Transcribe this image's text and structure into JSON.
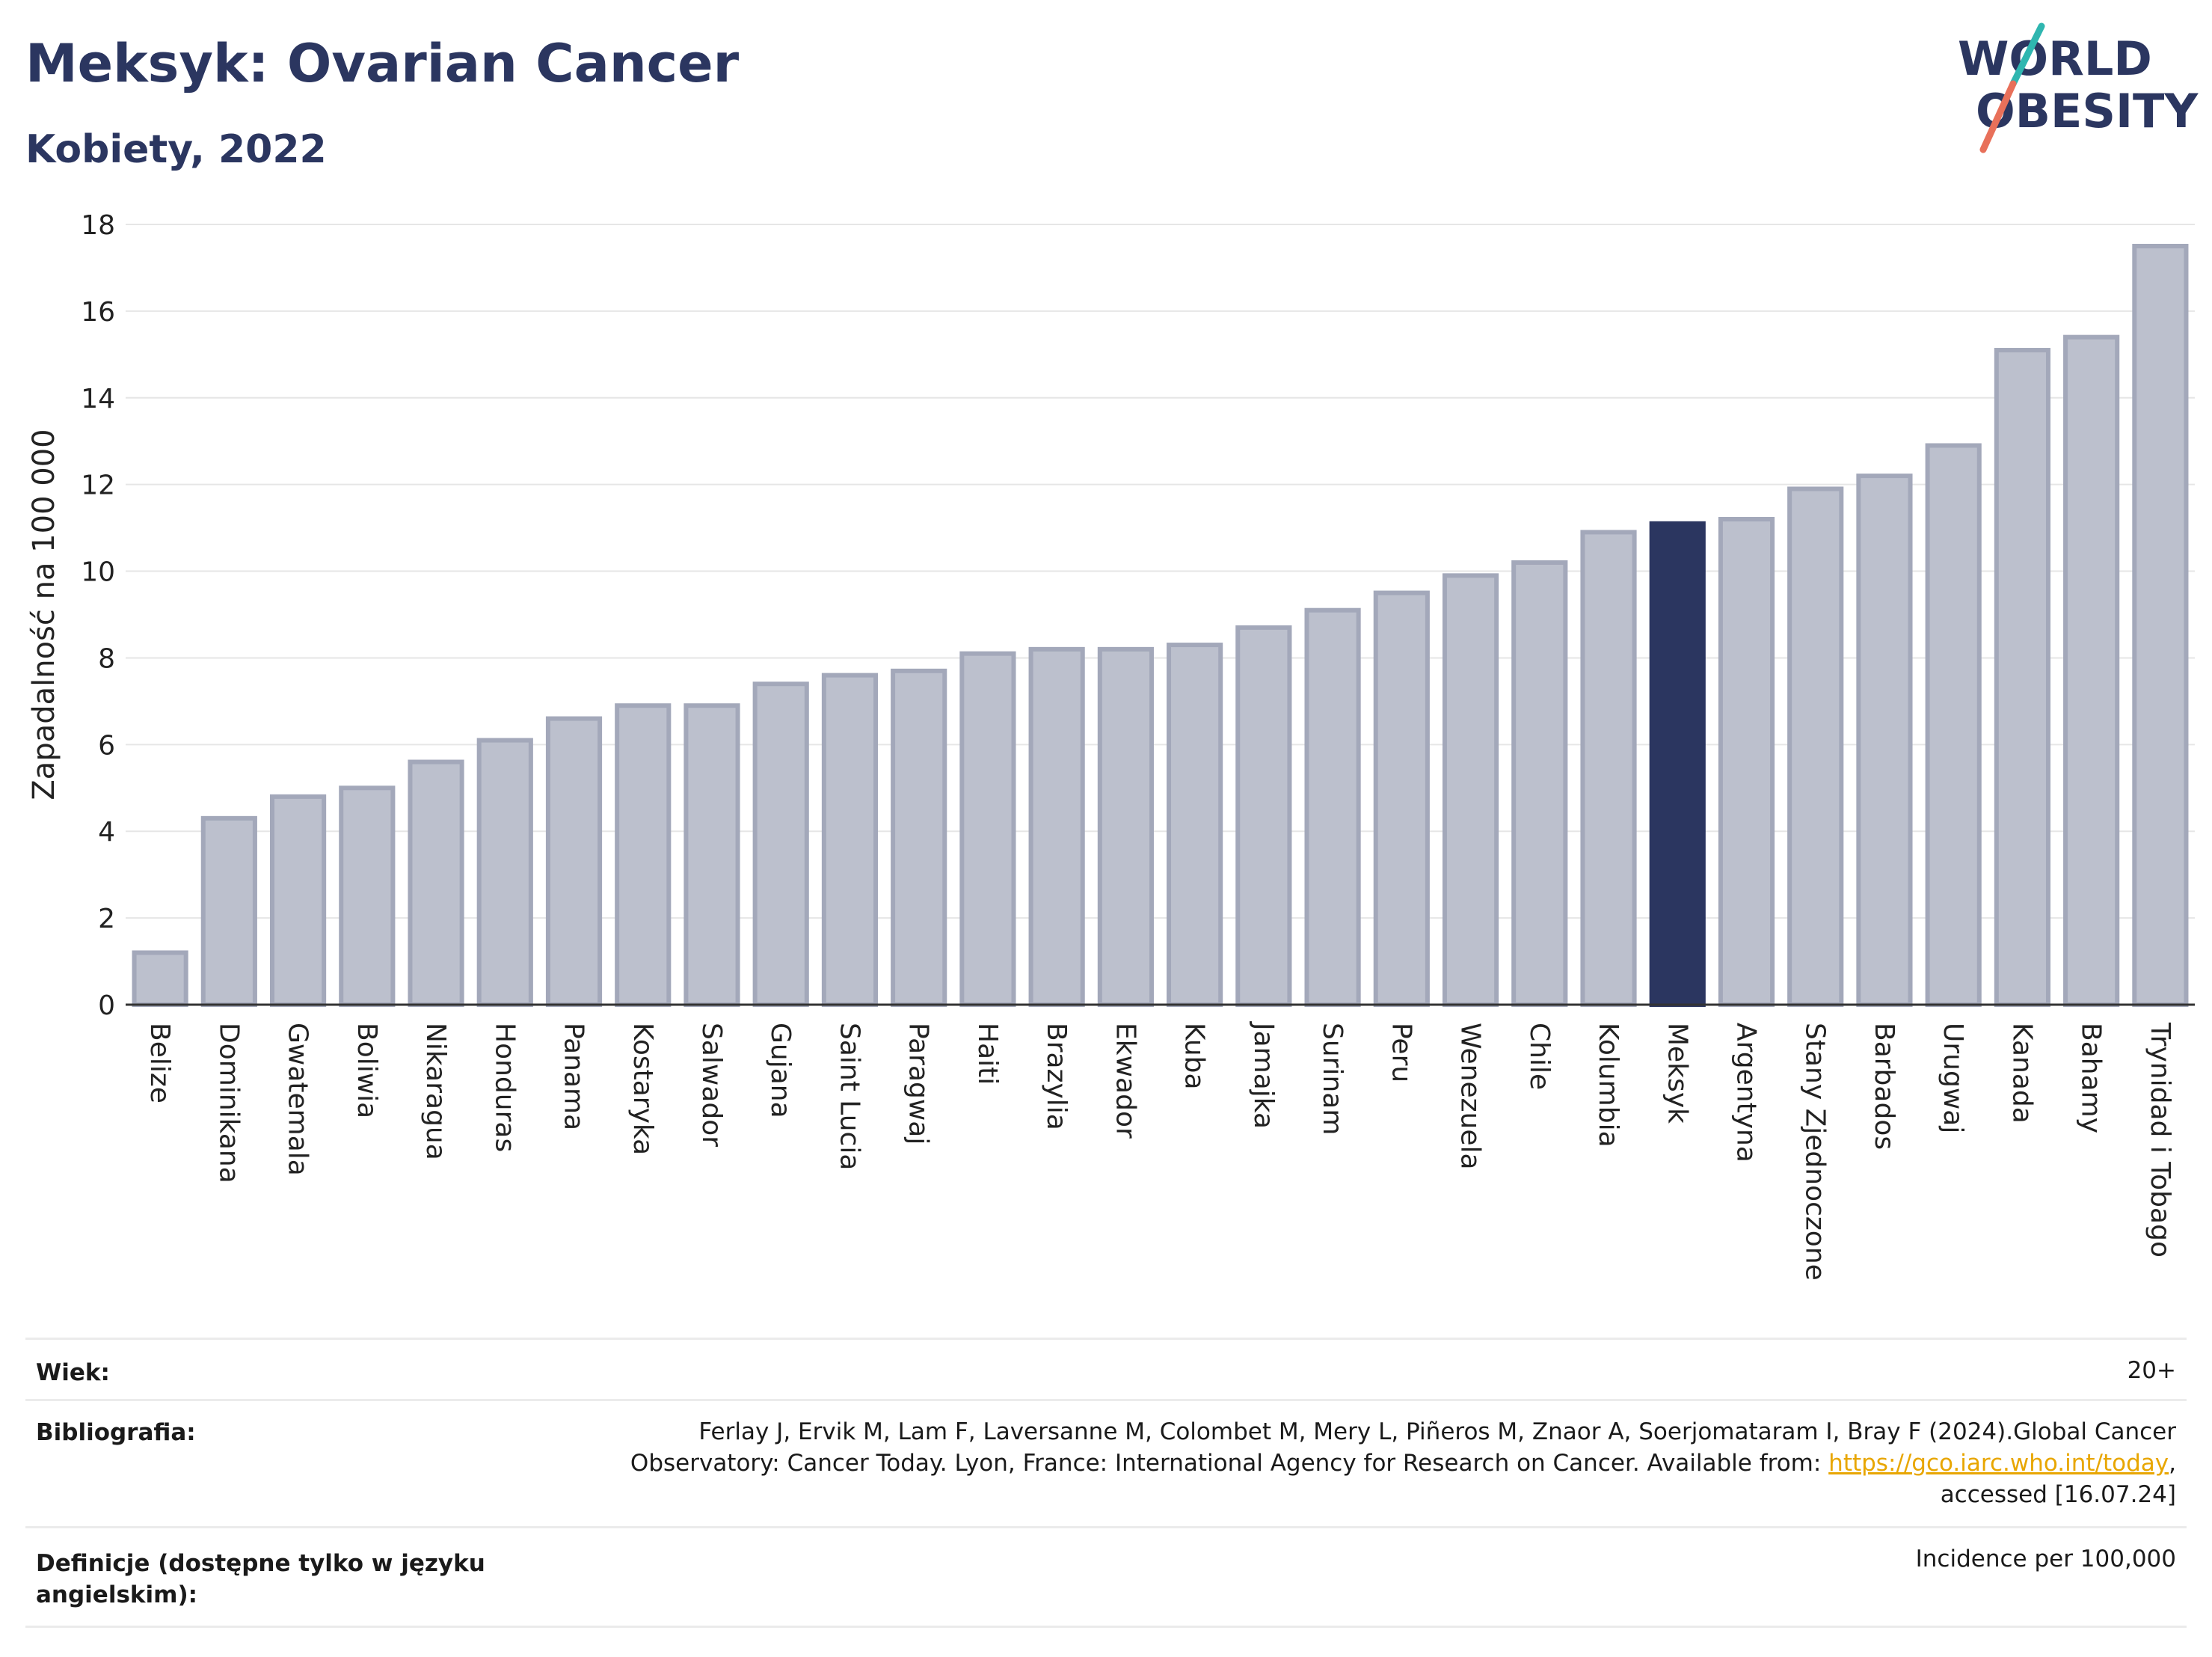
{
  "header": {
    "title": "Meksyk: Ovarian Cancer",
    "subtitle": "Kobiety, 2022",
    "logo_line1": "WORLD",
    "logo_line2": "OBESITY"
  },
  "colors": {
    "highlight": "#2b3660",
    "bar_fill": "#bcc0cd",
    "bar_stroke": "#a3a8ba"
  },
  "chart_data": {
    "type": "bar",
    "ylabel": "Zapadalność na 100 000",
    "xlabel": "",
    "ylim": [
      0,
      18
    ],
    "yticks": [
      0,
      2,
      4,
      6,
      8,
      10,
      12,
      14,
      16,
      18
    ],
    "grid": true,
    "highlight_category": "Meksyk",
    "categories": [
      "Belize",
      "Dominikana",
      "Gwatemala",
      "Boliwia",
      "Nikaragua",
      "Honduras",
      "Panama",
      "Kostaryka",
      "Salwador",
      "Gujana",
      "Saint Lucia",
      "Paragwaj",
      "Haiti",
      "Brazylia",
      "Ekwador",
      "Kuba",
      "Jamajka",
      "Surinam",
      "Peru",
      "Wenezuela",
      "Chile",
      "Kolumbia",
      "Meksyk",
      "Argentyna",
      "Stany Zjednoczone",
      "Barbados",
      "Urugwaj",
      "Kanada",
      "Bahamy",
      "Trynidad i Tobago"
    ],
    "values": [
      1.2,
      4.3,
      4.8,
      5.0,
      5.6,
      6.1,
      6.6,
      6.9,
      6.9,
      7.4,
      7.6,
      7.7,
      8.1,
      8.2,
      8.2,
      8.3,
      8.7,
      9.1,
      9.5,
      9.9,
      10.2,
      10.9,
      11.1,
      11.2,
      11.9,
      12.2,
      12.9,
      15.1,
      15.4,
      17.5
    ]
  },
  "footer": {
    "age_label": "Wiek:",
    "age_value": "20+",
    "bib_label": "Bibliografia:",
    "bib_line1": "Ferlay J, Ervik M, Lam F, Laversanne M, Colombet M, Mery L, Piñeros M, Znaor A, Soerjomataram I, Bray F (2024).Global Cancer",
    "bib_line2_prefix": "Observatory: Cancer Today. Lyon, France: International Agency for Research on Cancer. Available from: ",
    "bib_link": "https://gco.iarc.who.int/today",
    "bib_line2_suffix": ",",
    "bib_line3": "accessed [16.07.24]",
    "def_label_line1": "Definicje (dostępne tylko w języku",
    "def_label_line2": "angielskim):",
    "def_value": "Incidence per 100,000"
  }
}
